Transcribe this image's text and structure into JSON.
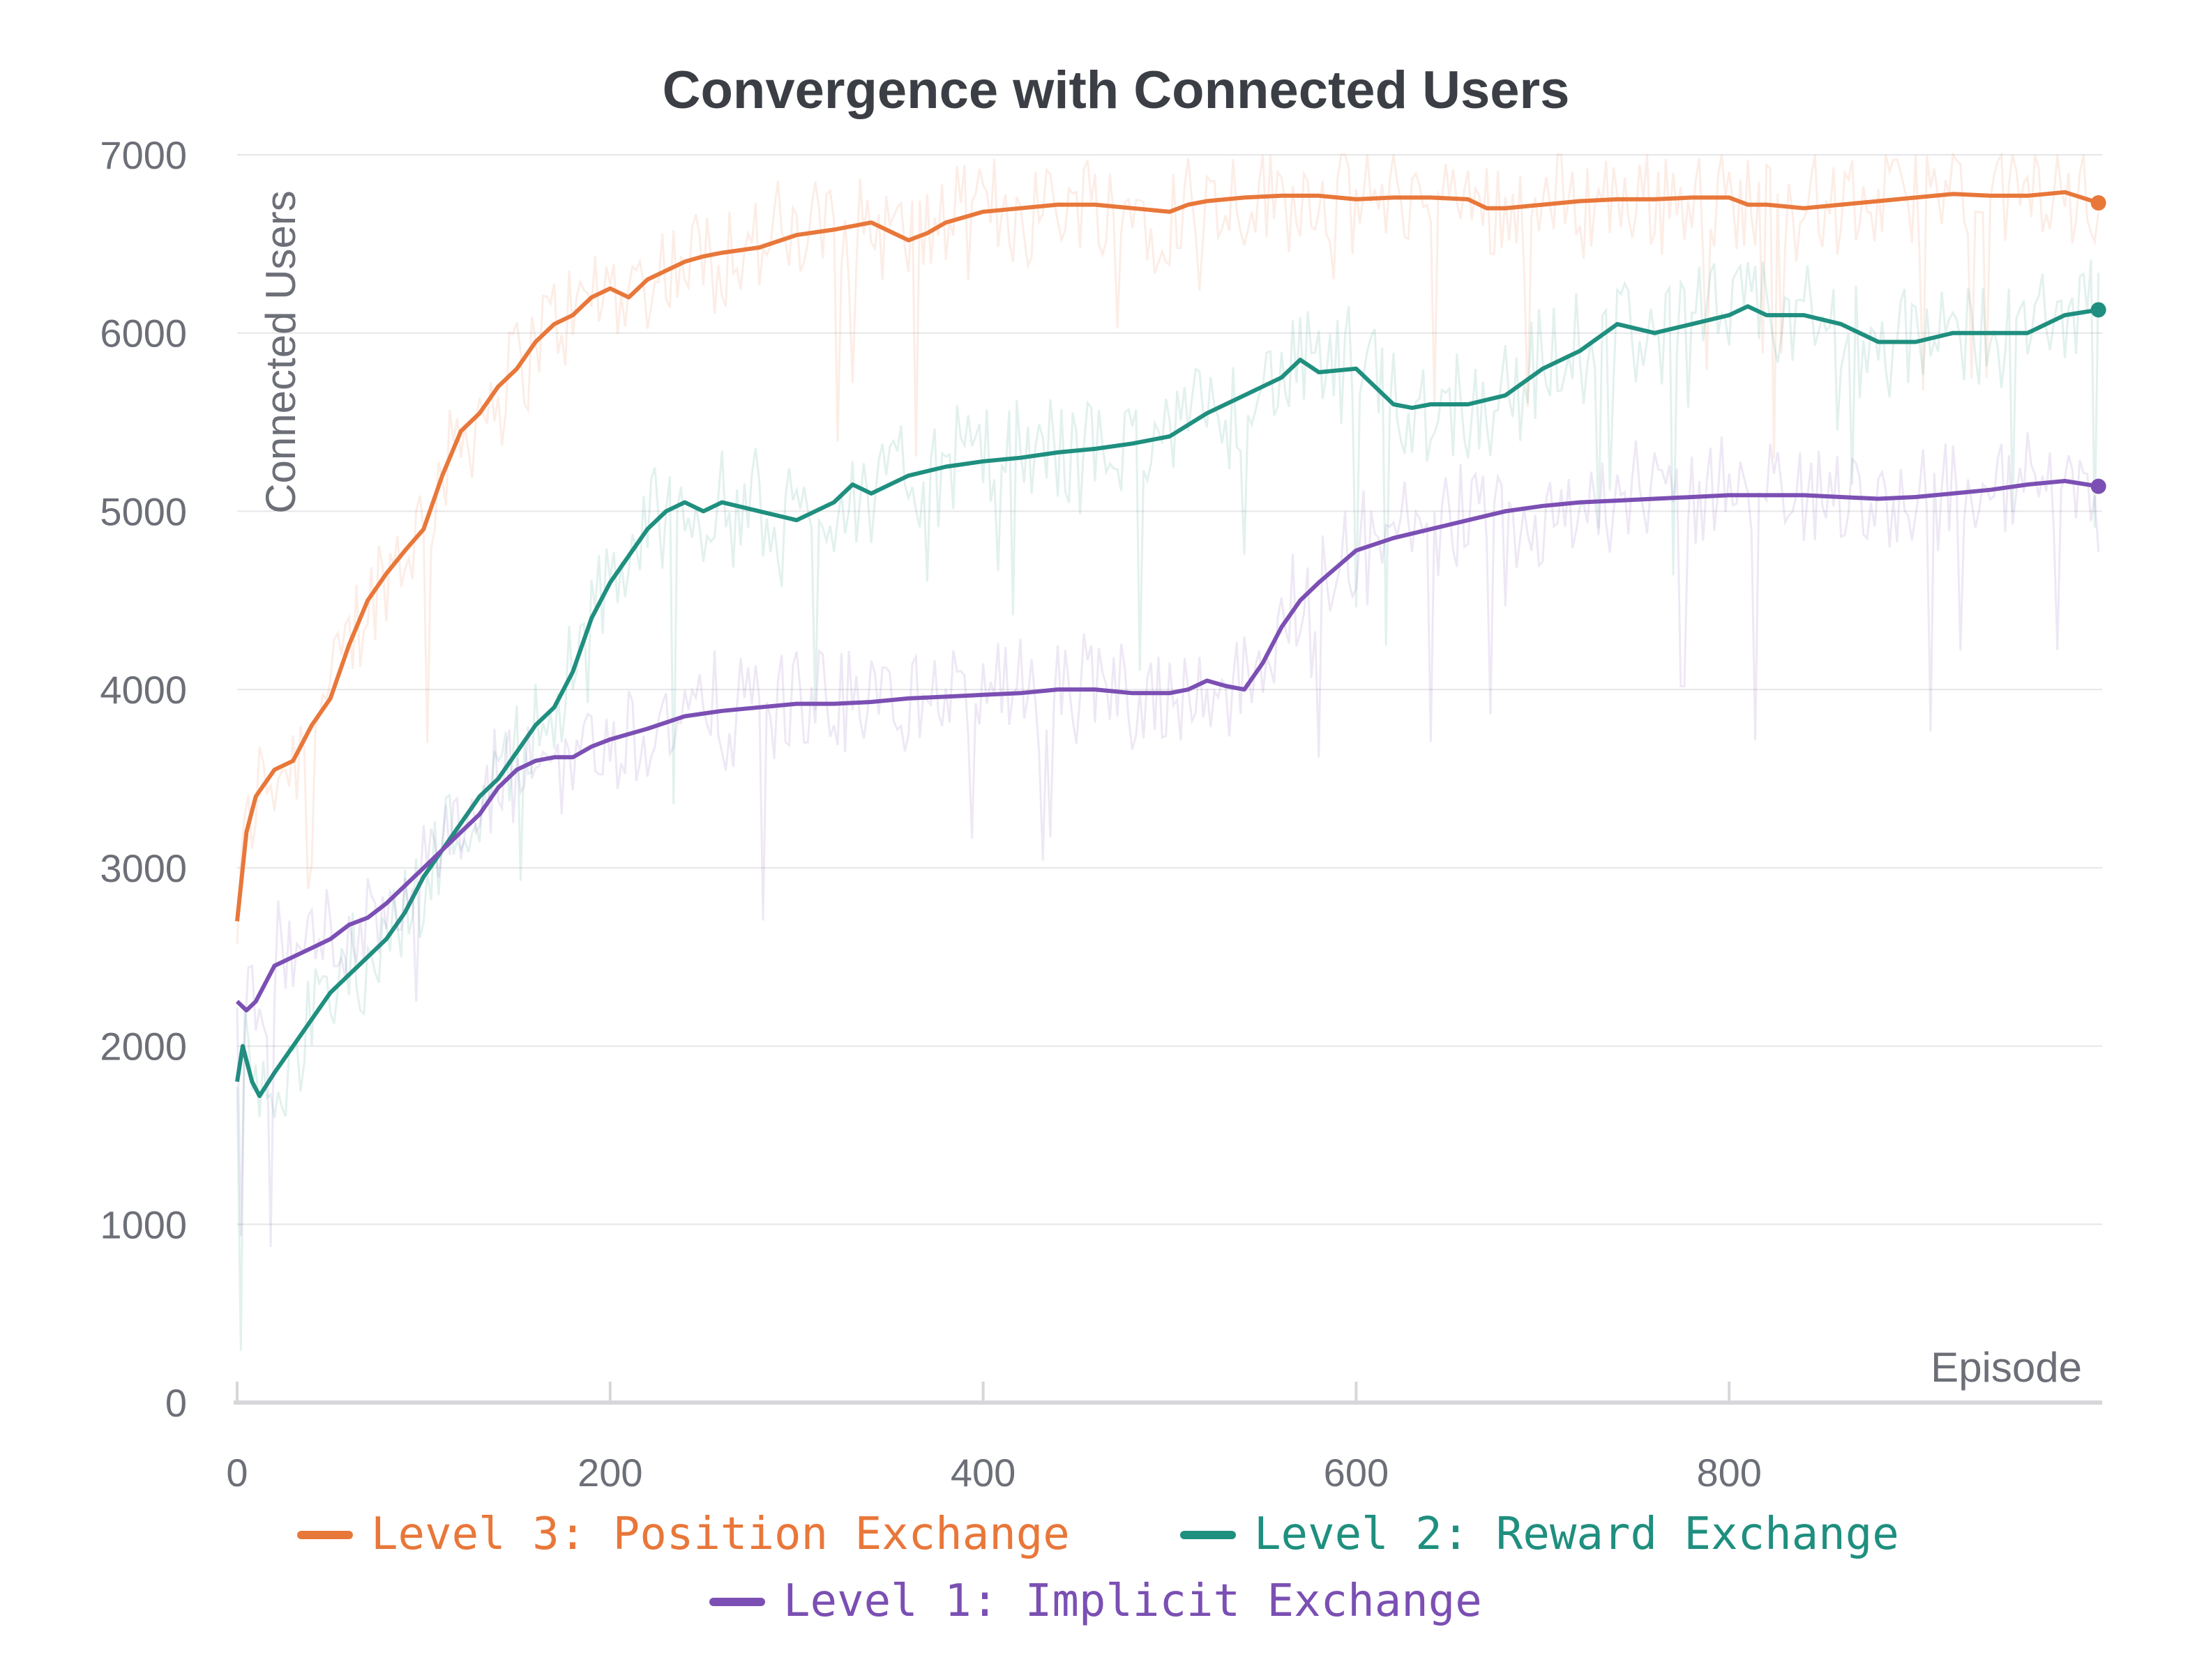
{
  "chart_data": {
    "type": "line",
    "title": "Convergence with Connected Users",
    "xlabel": "Episode",
    "ylabel": "Connected Users",
    "xlim": [
      0,
      1000
    ],
    "ylim": [
      0,
      7000
    ],
    "xticks": [
      0,
      200,
      400,
      600,
      800
    ],
    "yticks": [
      0,
      1000,
      2000,
      3000,
      4000,
      5000,
      6000,
      7000
    ],
    "grid": true,
    "legend_position": "bottom",
    "series": [
      {
        "name": "Level 3: Position Exchange",
        "color": "#e8773a",
        "x": [
          0,
          5,
          10,
          20,
          30,
          40,
          50,
          60,
          70,
          80,
          90,
          100,
          110,
          120,
          130,
          140,
          150,
          160,
          170,
          180,
          190,
          200,
          210,
          220,
          230,
          240,
          250,
          260,
          280,
          300,
          320,
          340,
          360,
          370,
          380,
          400,
          420,
          440,
          460,
          480,
          500,
          510,
          520,
          540,
          560,
          580,
          600,
          620,
          640,
          660,
          670,
          680,
          700,
          720,
          740,
          760,
          780,
          800,
          810,
          820,
          840,
          860,
          880,
          900,
          920,
          940,
          960,
          980,
          998
        ],
        "values": [
          2700,
          3200,
          3400,
          3550,
          3600,
          3800,
          3950,
          4250,
          4500,
          4650,
          4780,
          4900,
          5200,
          5450,
          5550,
          5700,
          5800,
          5950,
          6050,
          6100,
          6200,
          6250,
          6200,
          6300,
          6350,
          6400,
          6430,
          6450,
          6480,
          6550,
          6580,
          6620,
          6520,
          6560,
          6620,
          6680,
          6700,
          6720,
          6720,
          6700,
          6680,
          6720,
          6740,
          6760,
          6770,
          6770,
          6750,
          6760,
          6760,
          6750,
          6700,
          6700,
          6720,
          6740,
          6750,
          6750,
          6760,
          6760,
          6720,
          6720,
          6700,
          6720,
          6740,
          6760,
          6780,
          6770,
          6770,
          6790,
          6730
        ]
      },
      {
        "name": "Level 2: Reward Exchange",
        "color": "#1f8f7f",
        "x": [
          0,
          3,
          8,
          12,
          20,
          30,
          40,
          50,
          60,
          70,
          80,
          90,
          100,
          110,
          120,
          130,
          140,
          150,
          160,
          170,
          180,
          190,
          200,
          210,
          220,
          230,
          240,
          250,
          260,
          280,
          300,
          320,
          330,
          340,
          350,
          360,
          380,
          400,
          420,
          440,
          460,
          480,
          500,
          520,
          540,
          560,
          570,
          580,
          600,
          620,
          630,
          640,
          660,
          680,
          700,
          720,
          740,
          760,
          780,
          800,
          810,
          820,
          840,
          860,
          880,
          900,
          920,
          940,
          960,
          980,
          998
        ],
        "values": [
          1800,
          2000,
          1800,
          1720,
          1850,
          2000,
          2150,
          2300,
          2400,
          2500,
          2600,
          2750,
          2950,
          3100,
          3250,
          3400,
          3500,
          3650,
          3800,
          3900,
          4100,
          4400,
          4600,
          4750,
          4900,
          5000,
          5050,
          5000,
          5050,
          5000,
          4950,
          5050,
          5150,
          5100,
          5150,
          5200,
          5250,
          5280,
          5300,
          5330,
          5350,
          5380,
          5420,
          5550,
          5650,
          5750,
          5850,
          5780,
          5800,
          5600,
          5580,
          5600,
          5600,
          5650,
          5800,
          5900,
          6050,
          6000,
          6050,
          6100,
          6150,
          6100,
          6100,
          6050,
          5950,
          5950,
          6000,
          6000,
          6000,
          6100,
          6130
        ]
      },
      {
        "name": "Level 1: Implicit Exchange",
        "color": "#7b4fb3",
        "x": [
          0,
          5,
          10,
          20,
          30,
          40,
          50,
          60,
          70,
          80,
          90,
          100,
          110,
          120,
          130,
          140,
          150,
          160,
          170,
          180,
          190,
          200,
          220,
          240,
          260,
          280,
          300,
          320,
          340,
          360,
          380,
          400,
          420,
          440,
          460,
          480,
          500,
          510,
          520,
          530,
          540,
          550,
          560,
          570,
          580,
          600,
          620,
          640,
          660,
          680,
          700,
          720,
          740,
          760,
          780,
          800,
          820,
          840,
          860,
          880,
          900,
          920,
          940,
          960,
          980,
          998
        ],
        "values": [
          2250,
          2200,
          2250,
          2450,
          2500,
          2550,
          2600,
          2680,
          2720,
          2800,
          2900,
          3000,
          3100,
          3200,
          3300,
          3450,
          3550,
          3600,
          3620,
          3620,
          3680,
          3720,
          3780,
          3850,
          3880,
          3900,
          3920,
          3920,
          3930,
          3950,
          3960,
          3970,
          3980,
          4000,
          4000,
          3980,
          3980,
          4000,
          4050,
          4020,
          4000,
          4150,
          4350,
          4500,
          4600,
          4780,
          4850,
          4900,
          4950,
          5000,
          5030,
          5050,
          5060,
          5070,
          5080,
          5090,
          5090,
          5090,
          5080,
          5070,
          5080,
          5100,
          5120,
          5150,
          5170,
          5140
        ]
      }
    ]
  }
}
